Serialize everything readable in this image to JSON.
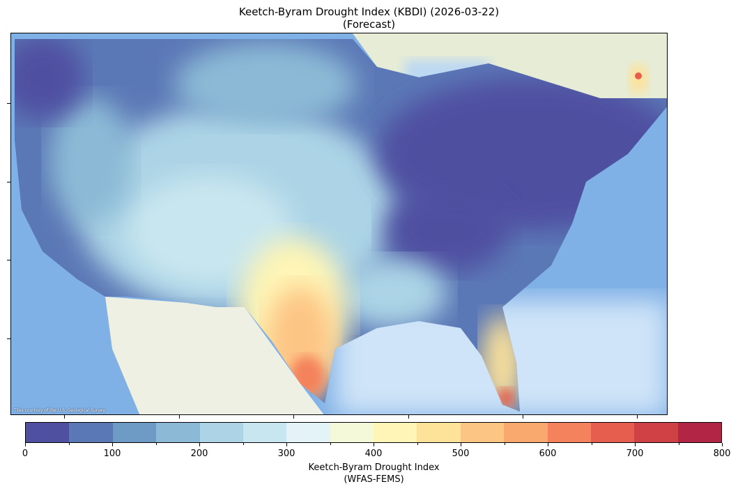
{
  "title": {
    "line1": "Keetch-Byram Drought Index (KBDI) (2026-03-22)",
    "line2": "(Forecast)"
  },
  "map": {
    "attribution": "Tiles courtesy of the U.S. Geological Survey",
    "basemap_colors": {
      "ocean": "#7fb0e6",
      "land_outside": "#eef0e4",
      "canada": "#e6ecd6"
    }
  },
  "colorbar": {
    "label_line1": "Keetch-Byram Drought Index",
    "label_line2": "(WFAS-FEMS)",
    "range": [
      0,
      800
    ],
    "step": 50,
    "tick_labels": [
      "0",
      "100",
      "200",
      "300",
      "400",
      "500",
      "600",
      "700",
      "800"
    ],
    "colors": [
      "#5050a0",
      "#5b78b6",
      "#6e9ac6",
      "#8cbad6",
      "#acd4e6",
      "#c8e6ef",
      "#e4f3f7",
      "#f4f9da",
      "#fef5b6",
      "#fde29a",
      "#fdc584",
      "#f9a86e",
      "#f4825c",
      "#e65f4e",
      "#d04145",
      "#b22544"
    ]
  }
}
